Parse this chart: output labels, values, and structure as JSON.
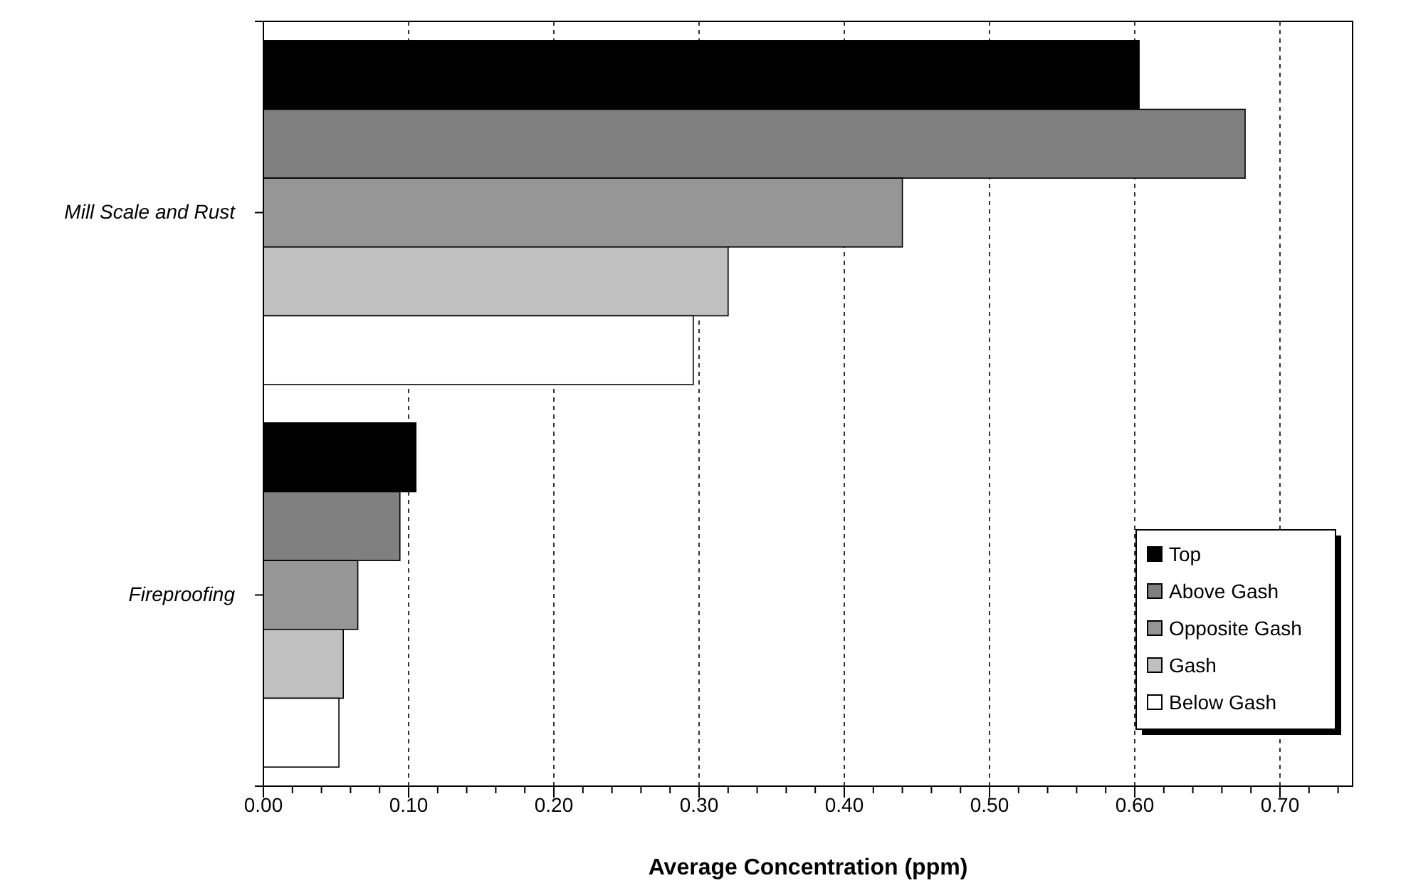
{
  "chart_data": {
    "type": "bar",
    "orientation": "horizontal",
    "xlabel": "Average Concentration (ppm)",
    "categories": [
      "Mill Scale and Rust",
      "Fireproofing"
    ],
    "series": [
      {
        "name": "Top",
        "color": "#000000",
        "values": [
          0.603,
          0.105
        ]
      },
      {
        "name": "Above Gash",
        "color": "#808080",
        "values": [
          0.676,
          0.094
        ]
      },
      {
        "name": "Opposite Gash",
        "color": "#969696",
        "values": [
          0.44,
          0.065
        ]
      },
      {
        "name": "Gash",
        "color": "#c0c0c0",
        "values": [
          0.32,
          0.055
        ]
      },
      {
        "name": "Below Gash",
        "color": "#ffffff",
        "values": [
          0.296,
          0.052
        ]
      }
    ],
    "xlim": [
      0,
      0.75
    ],
    "xticks": [
      {
        "value": 0,
        "label": "0.00"
      },
      {
        "value": 0.02,
        "label": null
      },
      {
        "value": 0.04,
        "label": null
      },
      {
        "value": 0.06,
        "label": null
      },
      {
        "value": 0.08,
        "label": null
      },
      {
        "value": 0.1,
        "label": "0.10"
      },
      {
        "value": 0.12,
        "label": null
      },
      {
        "value": 0.14,
        "label": null
      },
      {
        "value": 0.16,
        "label": null
      },
      {
        "value": 0.18,
        "label": null
      },
      {
        "value": 0.2,
        "label": "0.20"
      },
      {
        "value": 0.22,
        "label": null
      },
      {
        "value": 0.24,
        "label": null
      },
      {
        "value": 0.26,
        "label": null
      },
      {
        "value": 0.28,
        "label": null
      },
      {
        "value": 0.3,
        "label": "0.30"
      },
      {
        "value": 0.32,
        "label": null
      },
      {
        "value": 0.34,
        "label": null
      },
      {
        "value": 0.36,
        "label": null
      },
      {
        "value": 0.38,
        "label": null
      },
      {
        "value": 0.4,
        "label": "0.40"
      },
      {
        "value": 0.42,
        "label": null
      },
      {
        "value": 0.44,
        "label": null
      },
      {
        "value": 0.46,
        "label": null
      },
      {
        "value": 0.48,
        "label": null
      },
      {
        "value": 0.5,
        "label": "0.50"
      },
      {
        "value": 0.52,
        "label": null
      },
      {
        "value": 0.54,
        "label": null
      },
      {
        "value": 0.56,
        "label": null
      },
      {
        "value": 0.58,
        "label": null
      },
      {
        "value": 0.6,
        "label": "0.60"
      },
      {
        "value": 0.62,
        "label": null
      },
      {
        "value": 0.64,
        "label": null
      },
      {
        "value": 0.66,
        "label": null
      },
      {
        "value": 0.68,
        "label": null
      },
      {
        "value": 0.7,
        "label": "0.70"
      },
      {
        "value": 0.72,
        "label": null
      },
      {
        "value": 0.74,
        "label": null
      }
    ],
    "grid": "x",
    "legend": "bottom right"
  }
}
